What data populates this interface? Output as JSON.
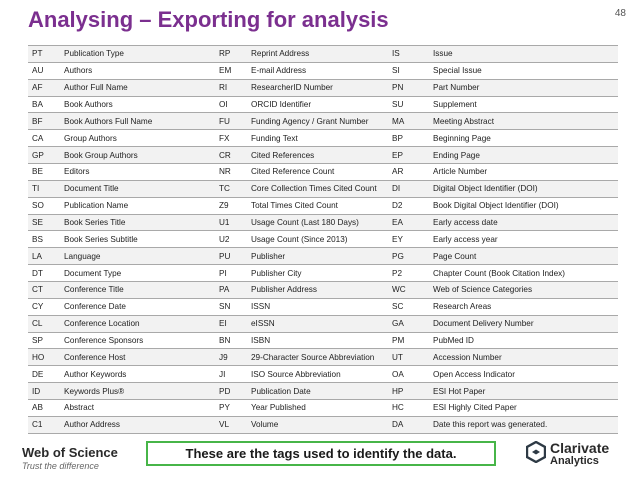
{
  "title": "Analysing – Exporting for analysis",
  "page_number": "48",
  "tags": [
    [
      "PT",
      "Publication Type",
      "RP",
      "Reprint Address",
      "IS",
      "Issue"
    ],
    [
      "AU",
      "Authors",
      "EM",
      "E-mail Address",
      "SI",
      "Special Issue"
    ],
    [
      "AF",
      "Author Full Name",
      "RI",
      "ResearcherID Number",
      "PN",
      "Part Number"
    ],
    [
      "BA",
      "Book Authors",
      "OI",
      "ORCID Identifier",
      "SU",
      "Supplement"
    ],
    [
      "BF",
      "Book Authors Full Name",
      "FU",
      "Funding Agency / Grant Number",
      "MA",
      "Meeting Abstract"
    ],
    [
      "CA",
      "Group Authors",
      "FX",
      "Funding Text",
      "BP",
      "Beginning Page"
    ],
    [
      "GP",
      "Book Group Authors",
      "CR",
      "Cited References",
      "EP",
      "Ending Page"
    ],
    [
      "BE",
      "Editors",
      "NR",
      "Cited Reference Count",
      "AR",
      "Article Number"
    ],
    [
      "TI",
      "Document Title",
      "TC",
      "Core Collection Times Cited Count",
      "DI",
      "Digital Object Identifier (DOI)"
    ],
    [
      "SO",
      "Publication Name",
      "Z9",
      "Total Times Cited Count",
      "D2",
      "Book Digital Object Identifier (DOI)"
    ],
    [
      "SE",
      "Book Series Title",
      "U1",
      "Usage Count (Last 180 Days)",
      "EA",
      "Early access date"
    ],
    [
      "BS",
      "Book Series Subtitle",
      "U2",
      "Usage Count (Since 2013)",
      "EY",
      "Early access year"
    ],
    [
      "LA",
      "Language",
      "PU",
      "Publisher",
      "PG",
      "Page Count"
    ],
    [
      "DT",
      "Document Type",
      "PI",
      "Publisher City",
      "P2",
      "Chapter Count (Book Citation Index)"
    ],
    [
      "CT",
      "Conference Title",
      "PA",
      "Publisher Address",
      "WC",
      "Web of Science Categories"
    ],
    [
      "CY",
      "Conference Date",
      "SN",
      "ISSN",
      "SC",
      "Research Areas"
    ],
    [
      "CL",
      "Conference Location",
      "EI",
      "eISSN",
      "GA",
      "Document Delivery Number"
    ],
    [
      "SP",
      "Conference Sponsors",
      "BN",
      "ISBN",
      "PM",
      "PubMed ID"
    ],
    [
      "HO",
      "Conference Host",
      "J9",
      "29-Character Source Abbreviation",
      "UT",
      "Accession Number"
    ],
    [
      "DE",
      "Author Keywords",
      "JI",
      "ISO Source Abbreviation",
      "OA",
      "Open Access Indicator"
    ],
    [
      "ID",
      "Keywords Plus®",
      "PD",
      "Publication Date",
      "HP",
      "ESI Hot Paper"
    ],
    [
      "AB",
      "Abstract",
      "PY",
      "Year Published",
      "HC",
      "ESI Highly Cited Paper"
    ],
    [
      "C1",
      "Author Address",
      "VL",
      "Volume",
      "DA",
      "Date this report was generated."
    ]
  ],
  "footer": {
    "wos_name": "Web of Science",
    "wos_tagline": "Trust the difference",
    "callout": "These are the tags used to identify the data.",
    "clarivate_name": "Clarivate",
    "clarivate_sub": "Analytics"
  },
  "colors": {
    "title": "#7b2f8f",
    "callout_border": "#47b548",
    "row_alt": "#f2f2f2",
    "clarivate_mark": "#2e3a45"
  }
}
